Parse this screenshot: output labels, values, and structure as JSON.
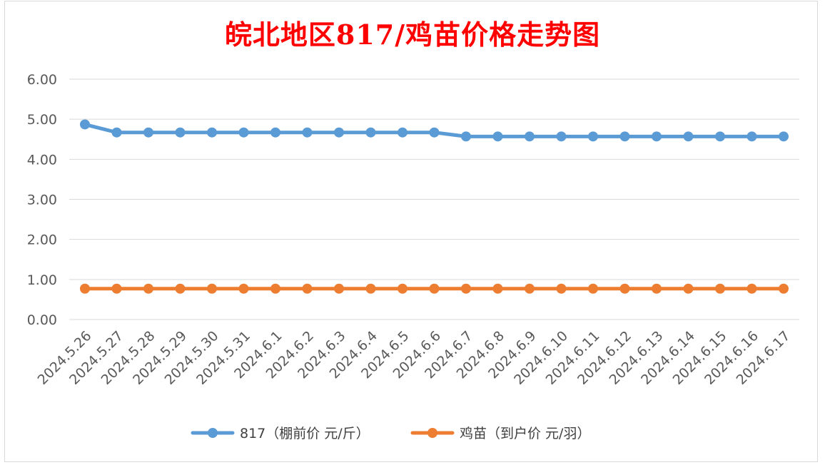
{
  "chart_data": {
    "type": "line",
    "title": "皖北地区817/鸡苗价格走势图",
    "categories": [
      "2024.5.26",
      "2024.5.27",
      "2024.5.28",
      "2024.5.29",
      "2024.5.30",
      "2024.5.31",
      "2024.6.1",
      "2024.6.2",
      "2024.6.3",
      "2024.6.4",
      "2024.6.5",
      "2024.6.6",
      "2024.6.7",
      "2024.6.8",
      "2024.6.9",
      "2024.6.10",
      "2024.6.11",
      "2024.6.12",
      "2024.6.13",
      "2024.6.14",
      "2024.6.15",
      "2024.6.16",
      "2024.6.17"
    ],
    "series": [
      {
        "name": "817（棚前价 元/斤）",
        "color": "#5b9bd5",
        "values": [
          4.87,
          4.67,
          4.67,
          4.67,
          4.67,
          4.67,
          4.67,
          4.67,
          4.67,
          4.67,
          4.67,
          4.67,
          4.57,
          4.57,
          4.57,
          4.57,
          4.57,
          4.57,
          4.57,
          4.57,
          4.57,
          4.57,
          4.57
        ]
      },
      {
        "name": "鸡苗（到户价 元/羽）",
        "color": "#ed7d31",
        "values": [
          0.77,
          0.77,
          0.77,
          0.77,
          0.77,
          0.77,
          0.77,
          0.77,
          0.77,
          0.77,
          0.77,
          0.77,
          0.77,
          0.77,
          0.77,
          0.77,
          0.77,
          0.77,
          0.77,
          0.77,
          0.77,
          0.77,
          0.77
        ]
      }
    ],
    "yticks": [
      "0.00",
      "1.00",
      "2.00",
      "3.00",
      "4.00",
      "5.00",
      "6.00"
    ],
    "ylim": [
      0,
      6
    ],
    "grid": true,
    "legend": "bottom"
  }
}
